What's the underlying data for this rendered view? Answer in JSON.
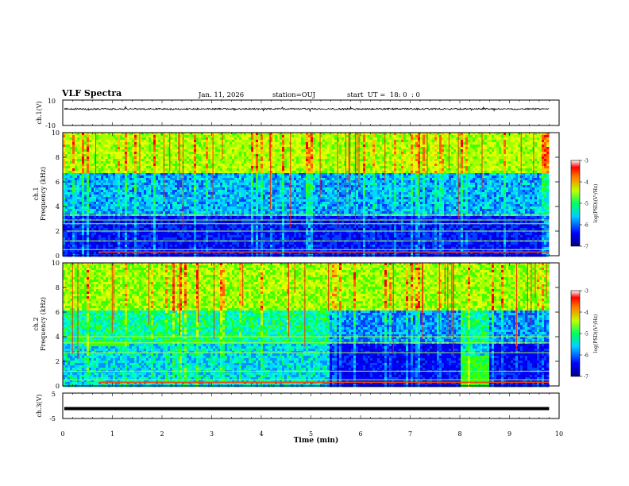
{
  "header": {
    "title": "VLF Spectra",
    "date": "Jan. 11, 2026",
    "station": "station=OUJ",
    "start": "start  UT =  18: 0  : 0"
  },
  "chart_data": [
    {
      "type": "line",
      "name": "ch1-waveform",
      "ylabel": "ch.1(V)",
      "ylim": [
        -10,
        10
      ],
      "yticks": [
        "10",
        "-10"
      ],
      "xlim": [
        0,
        10
      ],
      "level": 3,
      "spread": 0.6
    },
    {
      "type": "heatmap",
      "name": "ch1-spectrogram",
      "ylabel": "Frequency (kHz)",
      "channel": "ch.1",
      "ylim": [
        0,
        10
      ],
      "yticks": [
        "0",
        "2",
        "4",
        "6",
        "8",
        "10"
      ],
      "xlim": [
        0,
        10
      ],
      "data_end_min": 9.8,
      "colorbar": {
        "label": "log(PSD)(V²/Hz)",
        "range": [
          -7,
          -3
        ],
        "ticks": [
          "-3",
          "-4",
          "-5",
          "-6",
          "-7"
        ]
      },
      "bands_khz": [
        0.5,
        1.2,
        2.0,
        2.6,
        2.9,
        3.3
      ]
    },
    {
      "type": "heatmap",
      "name": "ch2-spectrogram",
      "ylabel": "Frequency (kHz)",
      "channel": "ch.2",
      "ylim": [
        0,
        10
      ],
      "yticks": [
        "0",
        "2",
        "4",
        "6",
        "8",
        "10"
      ],
      "xlim": [
        0,
        10
      ],
      "data_end_min": 9.8,
      "colorbar": {
        "label": "log(PSD)(V²/Hz)",
        "range": [
          -7,
          -3
        ],
        "ticks": [
          "-3",
          "-4",
          "-5",
          "-6",
          "-7"
        ]
      },
      "bands_khz": [
        0.5,
        1.2,
        2.7,
        3.5,
        4.0
      ]
    },
    {
      "type": "line",
      "name": "ch3-waveform",
      "ylabel": "ch.3(V)",
      "ylim": [
        -5,
        5
      ],
      "yticks": [
        "5",
        "-5"
      ],
      "xlim": [
        0,
        10
      ],
      "level": -1.1
    }
  ],
  "xaxis": {
    "label": "Time (min)",
    "ticks": [
      "0",
      "1",
      "2",
      "3",
      "4",
      "5",
      "6",
      "7",
      "8",
      "9",
      "10"
    ]
  }
}
